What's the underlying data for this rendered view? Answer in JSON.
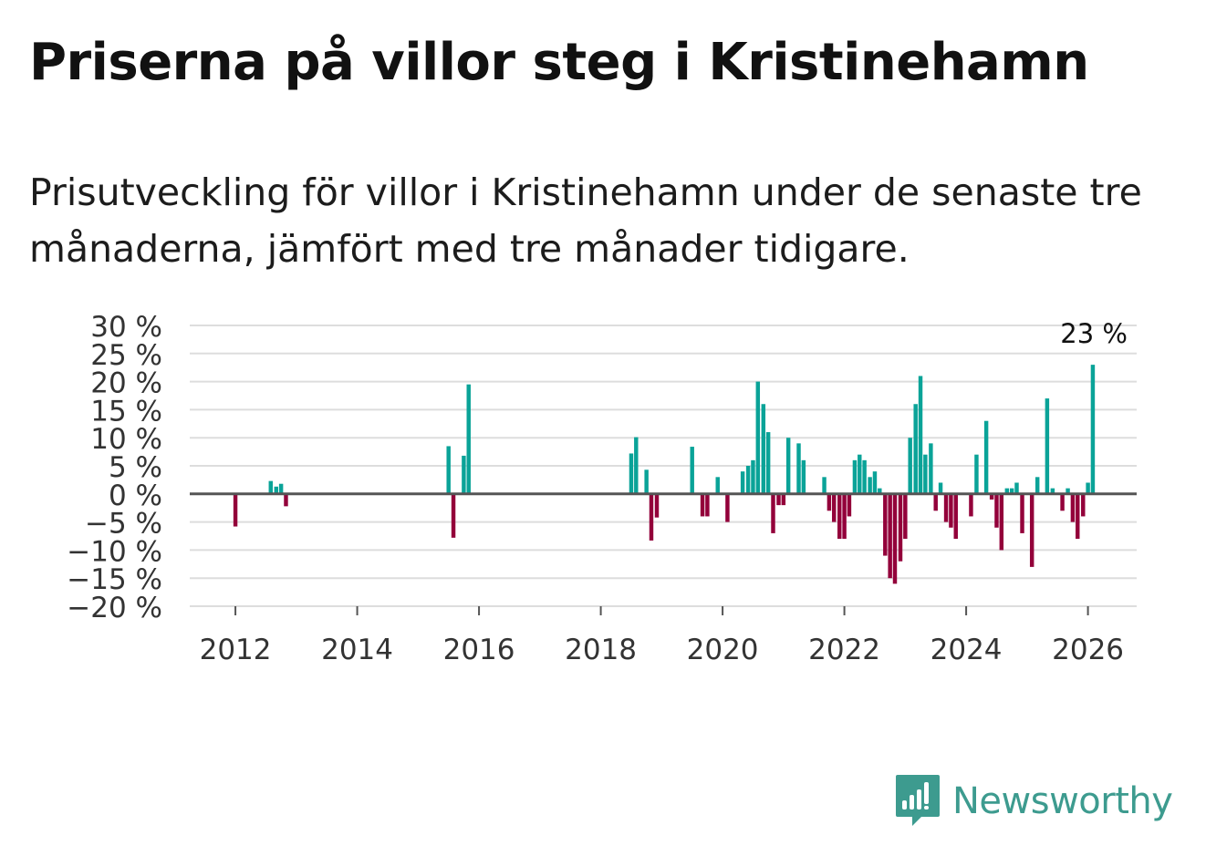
{
  "title": "Priserna på villor steg i Kristinehamn",
  "subtitle": "Prisutveckling för villor i Kristinehamn under de senaste tre månaderna, jämfört med tre månader tidigare.",
  "brand": {
    "name": "Newsworthy"
  },
  "colors": {
    "positive": "#0aa398",
    "negative": "#93003a",
    "grid": "#dddddd",
    "zero": "#555555"
  },
  "chart_data": {
    "type": "bar",
    "title": "Priserna på villor steg i Kristinehamn",
    "xlabel": "",
    "ylabel": "",
    "ylim": [
      -20,
      30
    ],
    "yticks": [
      {
        "v": 30,
        "label": "30 %"
      },
      {
        "v": 25,
        "label": "25 %"
      },
      {
        "v": 20,
        "label": "20 %"
      },
      {
        "v": 15,
        "label": "15 %"
      },
      {
        "v": 10,
        "label": "10 %"
      },
      {
        "v": 5,
        "label": "5 %"
      },
      {
        "v": 0,
        "label": "0 %"
      },
      {
        "v": -5,
        "label": "−5 %"
      },
      {
        "v": -10,
        "label": "−10 %"
      },
      {
        "v": -15,
        "label": "−15 %"
      },
      {
        "v": -20,
        "label": "−20 %"
      }
    ],
    "xlim": [
      2011.25,
      2026.8
    ],
    "xticks": [
      {
        "v": 2012,
        "label": "2012"
      },
      {
        "v": 2014,
        "label": "2014"
      },
      {
        "v": 2016,
        "label": "2016"
      },
      {
        "v": 2018,
        "label": "2018"
      },
      {
        "v": 2020,
        "label": "2020"
      },
      {
        "v": 2022,
        "label": "2022"
      },
      {
        "v": 2024,
        "label": "2024"
      },
      {
        "v": 2026,
        "label": "2026"
      }
    ],
    "bar_width_months": 0.8,
    "annotation": {
      "x": 2026.08,
      "y": 23,
      "label": "23 %"
    },
    "series": [
      {
        "name": "Prisutveckling",
        "points": [
          {
            "x": 2012.0,
            "y": -5.8
          },
          {
            "x": 2012.58,
            "y": 2.3
          },
          {
            "x": 2012.67,
            "y": 1.3
          },
          {
            "x": 2012.75,
            "y": 1.8
          },
          {
            "x": 2012.83,
            "y": -2.2
          },
          {
            "x": 2015.5,
            "y": 8.5
          },
          {
            "x": 2015.58,
            "y": -7.8
          },
          {
            "x": 2015.75,
            "y": 6.8
          },
          {
            "x": 2015.83,
            "y": 19.5
          },
          {
            "x": 2018.5,
            "y": 7.2
          },
          {
            "x": 2018.58,
            "y": 10.1
          },
          {
            "x": 2018.75,
            "y": 4.3
          },
          {
            "x": 2018.83,
            "y": -8.3
          },
          {
            "x": 2018.92,
            "y": -4.2
          },
          {
            "x": 2019.5,
            "y": 8.4
          },
          {
            "x": 2019.67,
            "y": -4.0
          },
          {
            "x": 2019.75,
            "y": -4.0
          },
          {
            "x": 2019.92,
            "y": 3.0
          },
          {
            "x": 2020.08,
            "y": -5.0
          },
          {
            "x": 2020.33,
            "y": 4.0
          },
          {
            "x": 2020.42,
            "y": 5.0
          },
          {
            "x": 2020.5,
            "y": 6.0
          },
          {
            "x": 2020.58,
            "y": 20.0
          },
          {
            "x": 2020.67,
            "y": 16.0
          },
          {
            "x": 2020.75,
            "y": 11.0
          },
          {
            "x": 2020.83,
            "y": -7.0
          },
          {
            "x": 2020.92,
            "y": -2.0
          },
          {
            "x": 2021.0,
            "y": -2.0
          },
          {
            "x": 2021.08,
            "y": 10.0
          },
          {
            "x": 2021.25,
            "y": 9.0
          },
          {
            "x": 2021.33,
            "y": 6.0
          },
          {
            "x": 2021.67,
            "y": 3.0
          },
          {
            "x": 2021.75,
            "y": -3.0
          },
          {
            "x": 2021.83,
            "y": -5.0
          },
          {
            "x": 2021.92,
            "y": -8.0
          },
          {
            "x": 2022.0,
            "y": -8.0
          },
          {
            "x": 2022.08,
            "y": -4.0
          },
          {
            "x": 2022.17,
            "y": 6.0
          },
          {
            "x": 2022.25,
            "y": 7.0
          },
          {
            "x": 2022.33,
            "y": 6.0
          },
          {
            "x": 2022.42,
            "y": 3.0
          },
          {
            "x": 2022.5,
            "y": 4.0
          },
          {
            "x": 2022.58,
            "y": 1.0
          },
          {
            "x": 2022.67,
            "y": -11.0
          },
          {
            "x": 2022.75,
            "y": -15.0
          },
          {
            "x": 2022.83,
            "y": -16.0
          },
          {
            "x": 2022.92,
            "y": -12.0
          },
          {
            "x": 2023.0,
            "y": -8.0
          },
          {
            "x": 2023.08,
            "y": 10.0
          },
          {
            "x": 2023.17,
            "y": 16.0
          },
          {
            "x": 2023.25,
            "y": 21.0
          },
          {
            "x": 2023.33,
            "y": 7.0
          },
          {
            "x": 2023.42,
            "y": 9.0
          },
          {
            "x": 2023.5,
            "y": -3.0
          },
          {
            "x": 2023.58,
            "y": 2.0
          },
          {
            "x": 2023.67,
            "y": -5.0
          },
          {
            "x": 2023.75,
            "y": -6.0
          },
          {
            "x": 2023.83,
            "y": -8.0
          },
          {
            "x": 2024.08,
            "y": -4.0
          },
          {
            "x": 2024.17,
            "y": 7.0
          },
          {
            "x": 2024.33,
            "y": 13.0
          },
          {
            "x": 2024.42,
            "y": -1.0
          },
          {
            "x": 2024.5,
            "y": -6.0
          },
          {
            "x": 2024.58,
            "y": -10.0
          },
          {
            "x": 2024.67,
            "y": 1.0
          },
          {
            "x": 2024.75,
            "y": 1.0
          },
          {
            "x": 2024.83,
            "y": 2.0
          },
          {
            "x": 2024.92,
            "y": -7.0
          },
          {
            "x": 2025.08,
            "y": -13.0
          },
          {
            "x": 2025.17,
            "y": 3.0
          },
          {
            "x": 2025.33,
            "y": 17.0
          },
          {
            "x": 2025.42,
            "y": 1.0
          },
          {
            "x": 2025.58,
            "y": -3.0
          },
          {
            "x": 2025.67,
            "y": 1.0
          },
          {
            "x": 2025.75,
            "y": -5.0
          },
          {
            "x": 2025.83,
            "y": -8.0
          },
          {
            "x": 2025.92,
            "y": -4.0
          },
          {
            "x": 2026.0,
            "y": 2.0
          },
          {
            "x": 2026.08,
            "y": 23.0
          }
        ]
      }
    ]
  }
}
